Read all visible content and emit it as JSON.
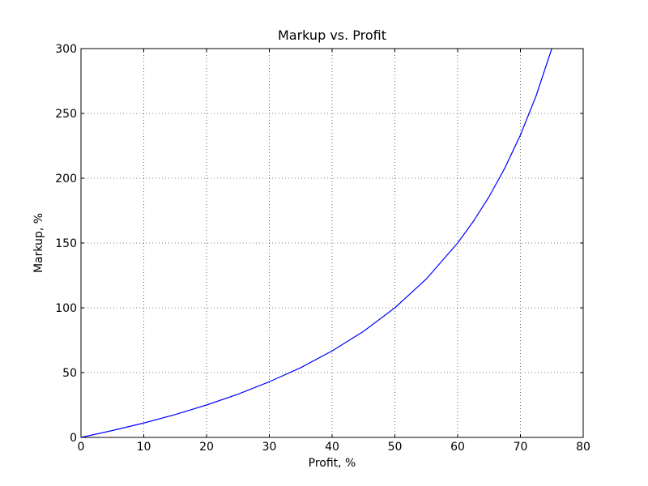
{
  "chart_data": {
    "type": "line",
    "title": "Markup vs. Profit",
    "xlabel": "Profit, %",
    "ylabel": "Markup, %",
    "xlim": [
      0,
      80
    ],
    "ylim": [
      0,
      300
    ],
    "xticks": [
      0,
      10,
      20,
      30,
      40,
      50,
      60,
      70,
      80
    ],
    "yticks": [
      0,
      50,
      100,
      150,
      200,
      250,
      300
    ],
    "xtick_labels": [
      "0",
      "10",
      "20",
      "30",
      "40",
      "50",
      "60",
      "70",
      "80"
    ],
    "ytick_labels": [
      "0",
      "50",
      "100",
      "150",
      "200",
      "250",
      "300"
    ],
    "grid": true,
    "grid_style": "dotted",
    "series": [
      {
        "color": "#0000ff",
        "x": [
          0,
          5,
          10,
          15,
          20,
          25,
          30,
          35,
          40,
          45,
          50,
          55,
          60,
          62.5,
          65,
          67.5,
          70,
          72.5,
          75
        ],
        "y": [
          0,
          5.3,
          11.1,
          17.6,
          25.0,
          33.3,
          42.9,
          53.8,
          66.7,
          81.8,
          100.0,
          122.2,
          150.0,
          166.7,
          185.7,
          207.7,
          233.3,
          263.6,
          300.0
        ]
      }
    ]
  }
}
